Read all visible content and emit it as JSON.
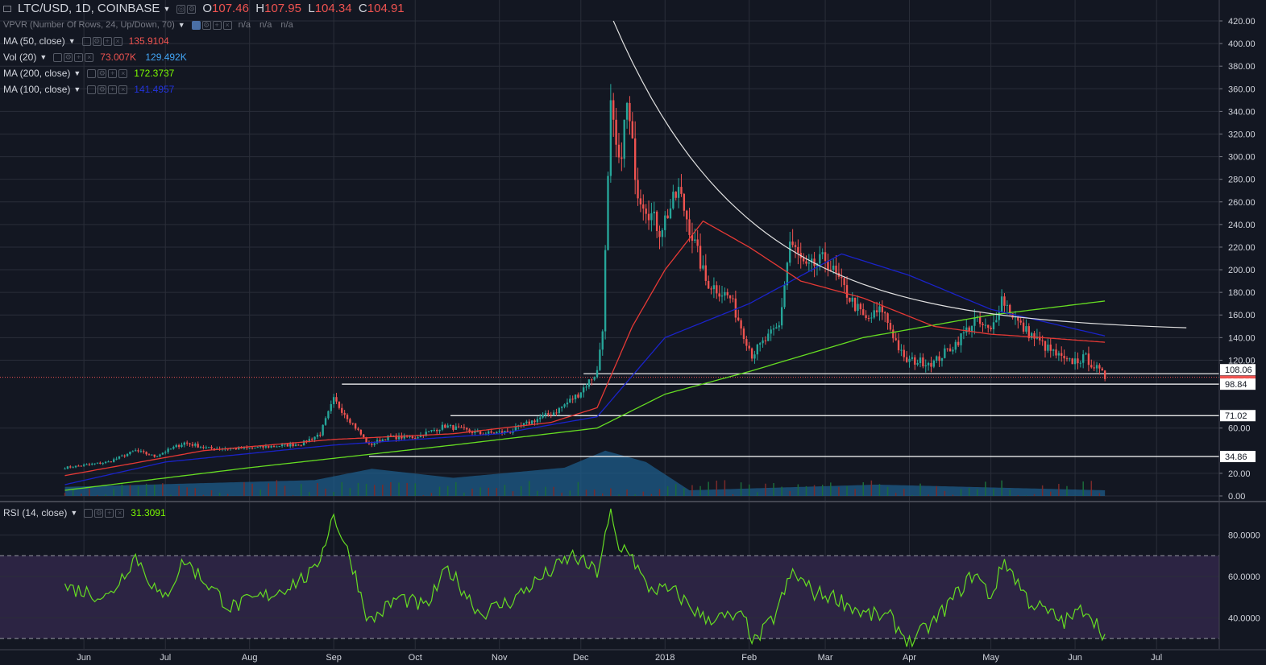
{
  "header": {
    "symbol": "LTC/USD, 1D, COINBASE",
    "open_label": "O",
    "open": "107.46",
    "high_label": "H",
    "high": "107.95",
    "low_label": "L",
    "low": "104.34",
    "close_label": "C",
    "close": "104.91"
  },
  "indicators": [
    {
      "name": "VPVR (Number Of Rows, 24, Up/Down, 70)",
      "values": [
        "n/a",
        "n/a",
        "n/a"
      ],
      "color": "#787b86"
    },
    {
      "name": "MA (50, close)",
      "values": [
        "135.9104"
      ],
      "color": "#ef5350"
    },
    {
      "name": "Vol (20)",
      "values": [
        "73.007K",
        "129.492K"
      ],
      "colors": [
        "#ef5350",
        "#42a5f5"
      ]
    },
    {
      "name": "MA (200, close)",
      "values": [
        "172.3737"
      ],
      "color": "#7cfc00"
    },
    {
      "name": "MA (100, close)",
      "values": [
        "141.4957"
      ],
      "color": "#1c2ad8"
    }
  ],
  "rsi": {
    "name": "RSI (14, close)",
    "value": "31.3091",
    "color": "#7cfc00"
  },
  "colors": {
    "background": "#131722",
    "grid": "#2a2e39",
    "up": "#26a69a",
    "down": "#ef5350",
    "ma50": "#e53935",
    "ma100": "#1a23c9",
    "ma200": "#66dd22",
    "rsi": "#66dd22",
    "rsi_band": "#2c2443",
    "curve": "#e0e0e0",
    "volume": "#1e5c8a"
  },
  "chart_data": [
    {
      "type": "candlestick",
      "price_axis_ticks": [
        "420.00",
        "400.00",
        "380.00",
        "360.00",
        "340.00",
        "320.00",
        "300.00",
        "280.00",
        "260.00",
        "240.00",
        "220.00",
        "200.00",
        "180.00",
        "160.00",
        "140.00",
        "120.00",
        "60.00",
        "20.00",
        "0.00"
      ],
      "price_labels": [
        {
          "text": "108.06",
          "value": 108.06
        },
        {
          "text": "104.91",
          "value": 104.91
        },
        {
          "text": "98.84",
          "value": 98.84
        },
        {
          "text": "71.02",
          "value": 71.02
        },
        {
          "text": "34.86",
          "value": 34.86
        }
      ],
      "time_labels": [
        "Jun",
        "Jul",
        "Aug",
        "Sep",
        "Oct",
        "Nov",
        "Dec",
        "2018",
        "Feb",
        "Mar",
        "Apr",
        "May",
        "Jun",
        "Jul"
      ],
      "ylim": [
        0,
        420
      ],
      "price_keypoints": [
        [
          "2017-05-25",
          25
        ],
        [
          "2017-06-10",
          30
        ],
        [
          "2017-06-20",
          40
        ],
        [
          "2017-06-27",
          35
        ],
        [
          "2017-07-08",
          47
        ],
        [
          "2017-07-17",
          42
        ],
        [
          "2017-07-31",
          42
        ],
        [
          "2017-08-20",
          46
        ],
        [
          "2017-08-27",
          55
        ],
        [
          "2017-09-01",
          85
        ],
        [
          "2017-09-06",
          70
        ],
        [
          "2017-09-14",
          45
        ],
        [
          "2017-09-21",
          52
        ],
        [
          "2017-10-01",
          52
        ],
        [
          "2017-10-12",
          62
        ],
        [
          "2017-10-25",
          55
        ],
        [
          "2017-11-05",
          57
        ],
        [
          "2017-11-12",
          65
        ],
        [
          "2017-11-22",
          75
        ],
        [
          "2017-11-30",
          90
        ],
        [
          "2017-12-07",
          110
        ],
        [
          "2017-12-09",
          150
        ],
        [
          "2017-12-12",
          340
        ],
        [
          "2017-12-15",
          290
        ],
        [
          "2017-12-18",
          345
        ],
        [
          "2017-12-22",
          270
        ],
        [
          "2017-12-30",
          235
        ],
        [
          "2018-01-06",
          270
        ],
        [
          "2018-01-16",
          190
        ],
        [
          "2018-01-25",
          175
        ],
        [
          "2018-02-02",
          125
        ],
        [
          "2018-02-06",
          135
        ],
        [
          "2018-02-12",
          150
        ],
        [
          "2018-02-16",
          225
        ],
        [
          "2018-02-22",
          200
        ],
        [
          "2018-03-01",
          210
        ],
        [
          "2018-03-10",
          175
        ],
        [
          "2018-03-16",
          155
        ],
        [
          "2018-03-22",
          165
        ],
        [
          "2018-03-30",
          120
        ],
        [
          "2018-04-10",
          118
        ],
        [
          "2018-04-18",
          135
        ],
        [
          "2018-04-25",
          155
        ],
        [
          "2018-05-01",
          145
        ],
        [
          "2018-05-05",
          175
        ],
        [
          "2018-05-12",
          150
        ],
        [
          "2018-05-22",
          130
        ],
        [
          "2018-05-29",
          118
        ],
        [
          "2018-06-05",
          122
        ],
        [
          "2018-06-12",
          105
        ]
      ],
      "ma50_keypoints": [
        [
          "2017-05-25",
          18
        ],
        [
          "2017-07-15",
          40
        ],
        [
          "2017-09-01",
          50
        ],
        [
          "2017-10-15",
          55
        ],
        [
          "2017-11-20",
          65
        ],
        [
          "2017-12-07",
          78
        ],
        [
          "2017-12-20",
          150
        ],
        [
          "2018-01-01",
          200
        ],
        [
          "2018-01-15",
          243
        ],
        [
          "2018-02-01",
          220
        ],
        [
          "2018-02-20",
          190
        ],
        [
          "2018-03-15",
          175
        ],
        [
          "2018-04-10",
          150
        ],
        [
          "2018-05-01",
          143
        ],
        [
          "2018-05-20",
          140
        ],
        [
          "2018-06-12",
          135.91
        ]
      ],
      "ma100_keypoints": [
        [
          "2017-05-25",
          10
        ],
        [
          "2017-07-01",
          30
        ],
        [
          "2017-09-01",
          45
        ],
        [
          "2017-11-01",
          55
        ],
        [
          "2017-12-07",
          70
        ],
        [
          "2018-01-01",
          140
        ],
        [
          "2018-02-01",
          170
        ],
        [
          "2018-03-07",
          214
        ],
        [
          "2018-04-01",
          195
        ],
        [
          "2018-05-01",
          165
        ],
        [
          "2018-06-12",
          141.5
        ]
      ],
      "ma200_keypoints": [
        [
          "2017-05-25",
          5
        ],
        [
          "2017-08-01",
          25
        ],
        [
          "2017-10-15",
          45
        ],
        [
          "2017-12-07",
          60
        ],
        [
          "2018-01-01",
          90
        ],
        [
          "2018-02-01",
          110
        ],
        [
          "2018-03-15",
          140
        ],
        [
          "2018-05-01",
          160
        ],
        [
          "2018-06-12",
          172.37
        ]
      ],
      "volume_profile_keypoints": [
        [
          "2017-05-25",
          8
        ],
        [
          "2017-08-25",
          14
        ],
        [
          "2017-09-15",
          24
        ],
        [
          "2017-10-15",
          16
        ],
        [
          "2017-11-25",
          25
        ],
        [
          "2017-12-10",
          40
        ],
        [
          "2017-12-25",
          30
        ],
        [
          "2018-01-10",
          5
        ],
        [
          "2018-03-20",
          10
        ],
        [
          "2018-06-12",
          5
        ]
      ],
      "trend_curve": {
        "start": [
          "2017-12-13",
          420
        ],
        "end": [
          "2018-07-12",
          145
        ]
      },
      "support_lines": [
        {
          "from": "2017-09-04",
          "value": 98.84
        },
        {
          "from": "2017-10-14",
          "value": 71.02
        },
        {
          "from": "2017-09-14",
          "value": 34.86
        },
        {
          "from": "2017-12-02",
          "value": 108.06
        }
      ]
    },
    {
      "type": "line",
      "name": "RSI (14, close)",
      "axis_ticks": [
        "80.0000",
        "60.0000",
        "40.0000"
      ],
      "ylim": [
        25,
        95
      ],
      "bands": [
        70,
        30
      ],
      "keypoints": [
        [
          "2017-05-25",
          55
        ],
        [
          "2017-06-10",
          50
        ],
        [
          "2017-06-20",
          70
        ],
        [
          "2017-06-30",
          48
        ],
        [
          "2017-07-08",
          68
        ],
        [
          "2017-07-25",
          45
        ],
        [
          "2017-08-10",
          52
        ],
        [
          "2017-08-25",
          62
        ],
        [
          "2017-09-01",
          90
        ],
        [
          "2017-09-08",
          65
        ],
        [
          "2017-09-14",
          38
        ],
        [
          "2017-09-25",
          50
        ],
        [
          "2017-10-05",
          45
        ],
        [
          "2017-10-13",
          64
        ],
        [
          "2017-10-25",
          42
        ],
        [
          "2017-11-05",
          48
        ],
        [
          "2017-11-15",
          58
        ],
        [
          "2017-11-28",
          70
        ],
        [
          "2017-12-07",
          62
        ],
        [
          "2017-12-12",
          90
        ],
        [
          "2017-12-15",
          72
        ],
        [
          "2017-12-18",
          75
        ],
        [
          "2017-12-25",
          55
        ],
        [
          "2018-01-05",
          52
        ],
        [
          "2018-01-15",
          40
        ],
        [
          "2018-01-30",
          40
        ],
        [
          "2018-02-03",
          28
        ],
        [
          "2018-02-10",
          40
        ],
        [
          "2018-02-17",
          62
        ],
        [
          "2018-02-25",
          52
        ],
        [
          "2018-03-05",
          50
        ],
        [
          "2018-03-15",
          42
        ],
        [
          "2018-03-25",
          40
        ],
        [
          "2018-04-01",
          28
        ],
        [
          "2018-04-10",
          38
        ],
        [
          "2018-04-25",
          62
        ],
        [
          "2018-05-01",
          50
        ],
        [
          "2018-05-06",
          68
        ],
        [
          "2018-05-15",
          48
        ],
        [
          "2018-05-28",
          38
        ],
        [
          "2018-06-05",
          45
        ],
        [
          "2018-06-12",
          31.31
        ]
      ]
    }
  ]
}
